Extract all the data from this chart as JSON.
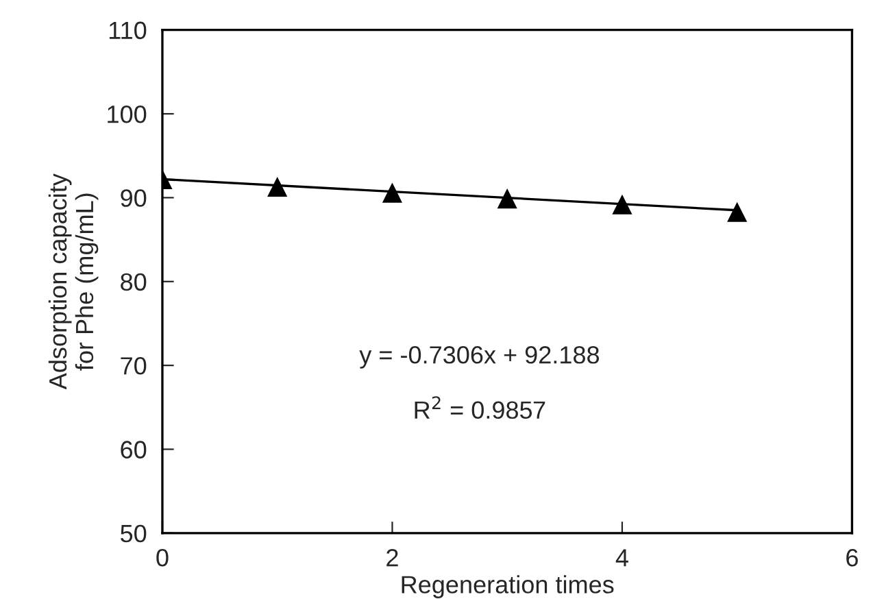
{
  "chart_data": {
    "type": "scatter",
    "xlabel": "Regeneration times",
    "ylabel": "Adsorption capacity\nfor Phe (mg/mL)",
    "x": [
      0,
      1,
      2,
      3,
      4,
      5
    ],
    "series": [
      {
        "color": "#000000",
        "marker": "triangle",
        "values": [
          92.2,
          91.3,
          90.6,
          89.9,
          89.2,
          88.3
        ]
      },
      {
        "type": "line",
        "color": "#000000",
        "marker": "none",
        "line_style": "solid",
        "x": [
          0,
          5
        ],
        "values": [
          92.2,
          88.5
        ]
      }
    ],
    "annotations": [
      "y = -0.7306x + 92.188",
      "R$^{2}$ = 0.9857"
    ],
    "xlim": [
      0,
      6
    ],
    "xticks": [
      0,
      2,
      4,
      6
    ],
    "ylim": [
      50,
      110
    ],
    "yticks": [
      50,
      60,
      70,
      80,
      90,
      100,
      110
    ],
    "grid": false,
    "legend": false
  }
}
